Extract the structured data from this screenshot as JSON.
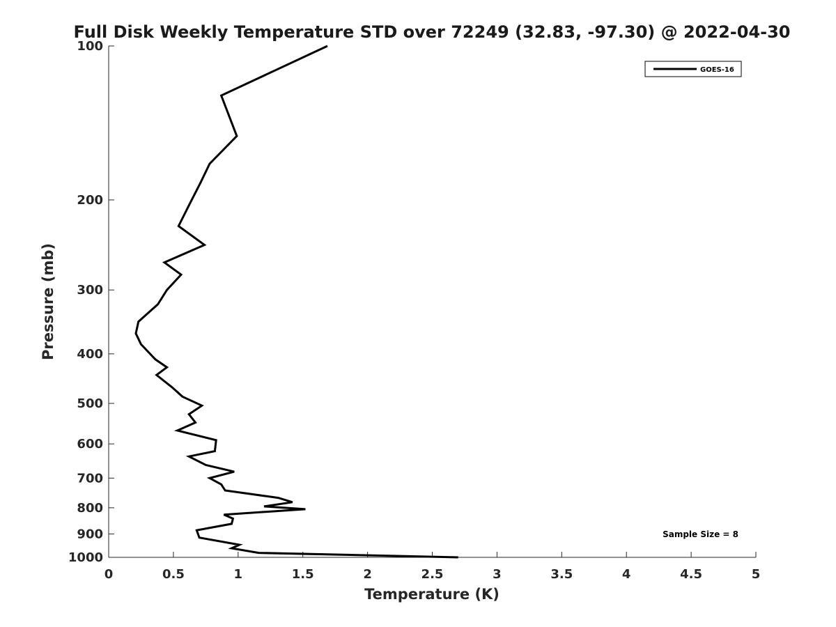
{
  "chart_data": {
    "type": "line",
    "title": "Full Disk Weekly Temperature STD over 72249 (32.83, -97.30) @ 2022-04-30",
    "xlabel": "Temperature (K)",
    "ylabel": "Pressure (mb)",
    "xlim": [
      0,
      5
    ],
    "ylim": [
      100,
      1000
    ],
    "y_scale": "log",
    "y_reversed": true,
    "x_ticks": [
      0,
      0.5,
      1,
      1.5,
      2,
      2.5,
      3,
      3.5,
      4,
      4.5,
      5
    ],
    "x_tick_labels": [
      "0",
      "0.5",
      "1",
      "1.5",
      "2",
      "2.5",
      "3",
      "3.5",
      "4",
      "4.5",
      "5"
    ],
    "y_ticks": [
      100,
      200,
      300,
      400,
      500,
      600,
      700,
      800,
      900,
      1000
    ],
    "y_tick_labels": [
      "100",
      "200",
      "300",
      "400",
      "500",
      "600",
      "700",
      "800",
      "900",
      "1000"
    ],
    "grid": false,
    "legend_position": "top-right",
    "series": [
      {
        "name": "GOES-16",
        "color": "#000000",
        "points": [
          [
            1.69,
            100
          ],
          [
            0.87,
            125
          ],
          [
            0.99,
            150
          ],
          [
            0.78,
            170
          ],
          [
            0.71,
            185
          ],
          [
            0.62,
            205
          ],
          [
            0.54,
            225
          ],
          [
            0.74,
            245
          ],
          [
            0.43,
            265
          ],
          [
            0.56,
            280
          ],
          [
            0.45,
            300
          ],
          [
            0.38,
            320
          ],
          [
            0.23,
            346
          ],
          [
            0.21,
            365
          ],
          [
            0.25,
            383
          ],
          [
            0.36,
            410
          ],
          [
            0.45,
            425
          ],
          [
            0.37,
            440
          ],
          [
            0.49,
            465
          ],
          [
            0.57,
            485
          ],
          [
            0.72,
            505
          ],
          [
            0.62,
            525
          ],
          [
            0.67,
            545
          ],
          [
            0.53,
            565
          ],
          [
            0.83,
            590
          ],
          [
            0.82,
            620
          ],
          [
            0.62,
            635
          ],
          [
            0.75,
            660
          ],
          [
            0.97,
            680
          ],
          [
            0.78,
            700
          ],
          [
            0.87,
            720
          ],
          [
            0.9,
            740
          ],
          [
            1.31,
            765
          ],
          [
            1.42,
            780
          ],
          [
            1.2,
            795
          ],
          [
            1.52,
            805
          ],
          [
            0.89,
            825
          ],
          [
            0.96,
            840
          ],
          [
            0.95,
            860
          ],
          [
            0.68,
            885
          ],
          [
            0.7,
            915
          ],
          [
            1.01,
            945
          ],
          [
            0.95,
            960
          ],
          [
            1.16,
            980
          ],
          [
            2.7,
            1000
          ]
        ]
      }
    ],
    "annotations": [
      "Sample Size = 8"
    ]
  }
}
